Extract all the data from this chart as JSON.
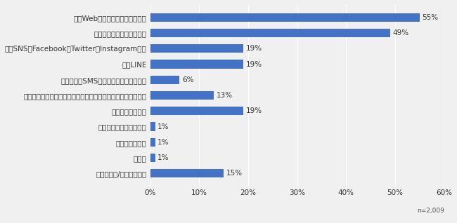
{
  "categories": [
    "公式Webサイト（ホームページ）",
    "企業からのメールマガジン",
    "公式SNS（Facebook、Twitter、Instagram等）",
    "公式LINE",
    "企業からのSMS（ショートメッセージ）",
    "公式アプリ（スマートフォンのアプリケーション）からの通知",
    "企業からの郵送物",
    "企業の担当者による訪問",
    "企業からの電話",
    "その他",
    "分からない/答えられない"
  ],
  "values": [
    55,
    49,
    19,
    19,
    6,
    13,
    19,
    1,
    1,
    1,
    15
  ],
  "bar_color": "#4472c4",
  "xlim": [
    0,
    60
  ],
  "xticks": [
    0,
    10,
    20,
    30,
    40,
    50,
    60
  ],
  "xtick_labels": [
    "0%",
    "10%",
    "20%",
    "30%",
    "40%",
    "50%",
    "60%"
  ],
  "note": "n=2,009",
  "background_color": "#f0f0f0",
  "grid_color": "#ffffff",
  "label_fontsize": 7.5,
  "value_fontsize": 7.5,
  "tick_fontsize": 7.5,
  "note_fontsize": 6.5
}
